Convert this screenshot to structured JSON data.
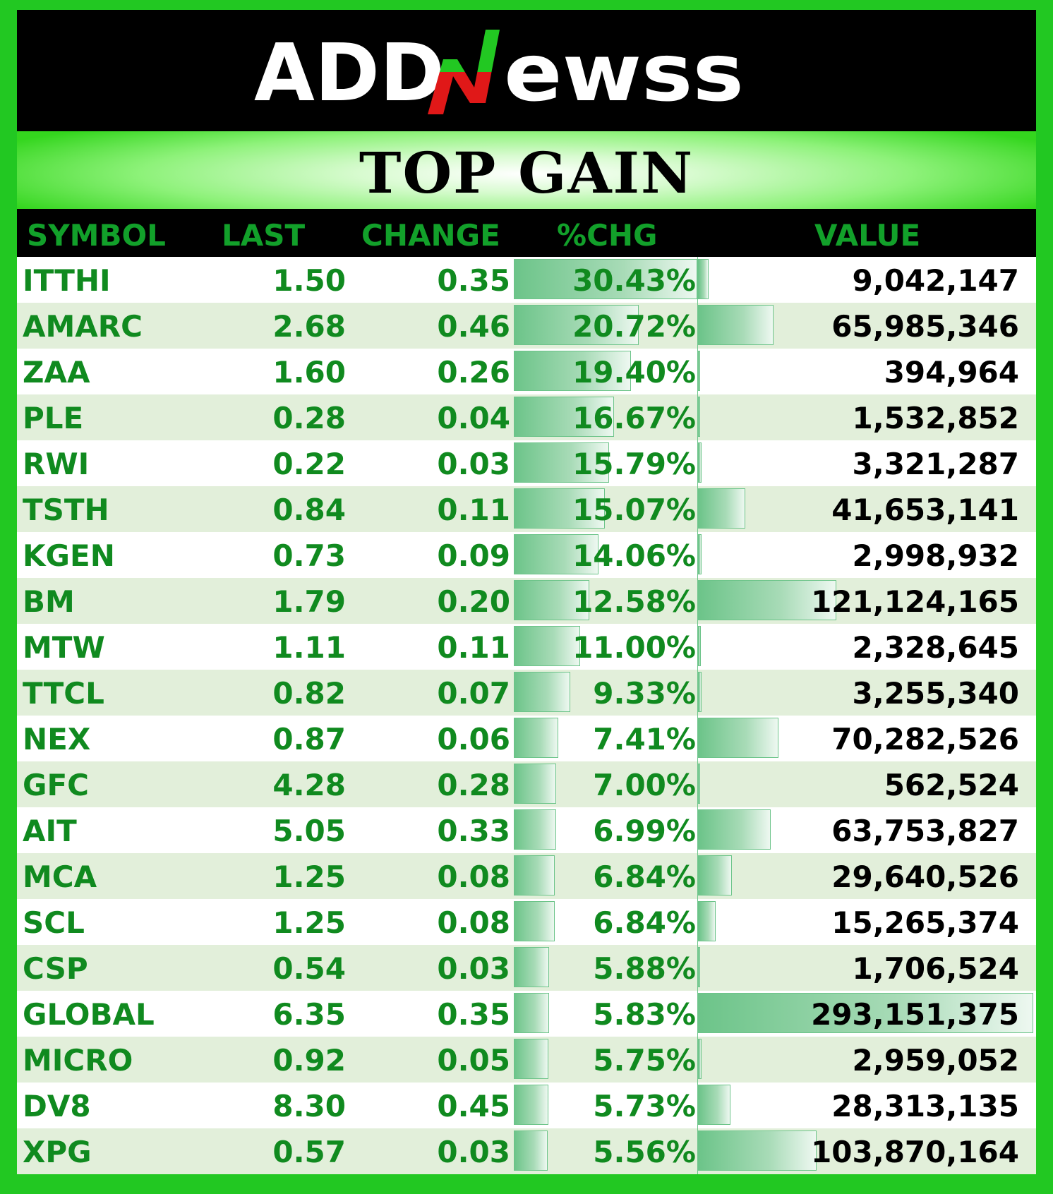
{
  "brand": {
    "logo_text": "ADDNeWSS",
    "colors": {
      "green": "#22c822",
      "dark_green": "#108a1f",
      "red": "#e01818"
    }
  },
  "title": "TOP GAIN",
  "columns": {
    "symbol": "SYMBOL",
    "last": "LAST",
    "change": "CHANGE",
    "pct_chg": "%CHG",
    "value": "VALUE"
  },
  "scale": {
    "pct_max": 30.43,
    "value_max": 293151375
  },
  "rows": [
    {
      "symbol": "ITTHI",
      "last": "1.50",
      "change": "0.35",
      "pct": "30.43%",
      "pct_num": 30.43,
      "value": "9,042,147",
      "value_num": 9042147
    },
    {
      "symbol": "AMARC",
      "last": "2.68",
      "change": "0.46",
      "pct": "20.72%",
      "pct_num": 20.72,
      "value": "65,985,346",
      "value_num": 65985346
    },
    {
      "symbol": "ZAA",
      "last": "1.60",
      "change": "0.26",
      "pct": "19.40%",
      "pct_num": 19.4,
      "value": "394,964",
      "value_num": 394964
    },
    {
      "symbol": "PLE",
      "last": "0.28",
      "change": "0.04",
      "pct": "16.67%",
      "pct_num": 16.67,
      "value": "1,532,852",
      "value_num": 1532852
    },
    {
      "symbol": "RWI",
      "last": "0.22",
      "change": "0.03",
      "pct": "15.79%",
      "pct_num": 15.79,
      "value": "3,321,287",
      "value_num": 3321287
    },
    {
      "symbol": "TSTH",
      "last": "0.84",
      "change": "0.11",
      "pct": "15.07%",
      "pct_num": 15.07,
      "value": "41,653,141",
      "value_num": 41653141
    },
    {
      "symbol": "KGEN",
      "last": "0.73",
      "change": "0.09",
      "pct": "14.06%",
      "pct_num": 14.06,
      "value": "2,998,932",
      "value_num": 2998932
    },
    {
      "symbol": "BM",
      "last": "1.79",
      "change": "0.20",
      "pct": "12.58%",
      "pct_num": 12.58,
      "value": "121,124,165",
      "value_num": 121124165
    },
    {
      "symbol": "MTW",
      "last": "1.11",
      "change": "0.11",
      "pct": "11.00%",
      "pct_num": 11.0,
      "value": "2,328,645",
      "value_num": 2328645
    },
    {
      "symbol": "TTCL",
      "last": "0.82",
      "change": "0.07",
      "pct": "9.33%",
      "pct_num": 9.33,
      "value": "3,255,340",
      "value_num": 3255340
    },
    {
      "symbol": "NEX",
      "last": "0.87",
      "change": "0.06",
      "pct": "7.41%",
      "pct_num": 7.41,
      "value": "70,282,526",
      "value_num": 70282526
    },
    {
      "symbol": "GFC",
      "last": "4.28",
      "change": "0.28",
      "pct": "7.00%",
      "pct_num": 7.0,
      "value": "562,524",
      "value_num": 562524
    },
    {
      "symbol": "AIT",
      "last": "5.05",
      "change": "0.33",
      "pct": "6.99%",
      "pct_num": 6.99,
      "value": "63,753,827",
      "value_num": 63753827
    },
    {
      "symbol": "MCA",
      "last": "1.25",
      "change": "0.08",
      "pct": "6.84%",
      "pct_num": 6.84,
      "value": "29,640,526",
      "value_num": 29640526
    },
    {
      "symbol": "SCL",
      "last": "1.25",
      "change": "0.08",
      "pct": "6.84%",
      "pct_num": 6.84,
      "value": "15,265,374",
      "value_num": 15265374
    },
    {
      "symbol": "CSP",
      "last": "0.54",
      "change": "0.03",
      "pct": "5.88%",
      "pct_num": 5.88,
      "value": "1,706,524",
      "value_num": 1706524
    },
    {
      "symbol": "GLOBAL",
      "last": "6.35",
      "change": "0.35",
      "pct": "5.83%",
      "pct_num": 5.83,
      "value": "293,151,375",
      "value_num": 293151375
    },
    {
      "symbol": "MICRO",
      "last": "0.92",
      "change": "0.05",
      "pct": "5.75%",
      "pct_num": 5.75,
      "value": "2,959,052",
      "value_num": 2959052
    },
    {
      "symbol": "DV8",
      "last": "8.30",
      "change": "0.45",
      "pct": "5.73%",
      "pct_num": 5.73,
      "value": "28,313,135",
      "value_num": 28313135
    },
    {
      "symbol": "XPG",
      "last": "0.57",
      "change": "0.03",
      "pct": "5.56%",
      "pct_num": 5.56,
      "value": "103,870,164",
      "value_num": 103870164
    }
  ]
}
